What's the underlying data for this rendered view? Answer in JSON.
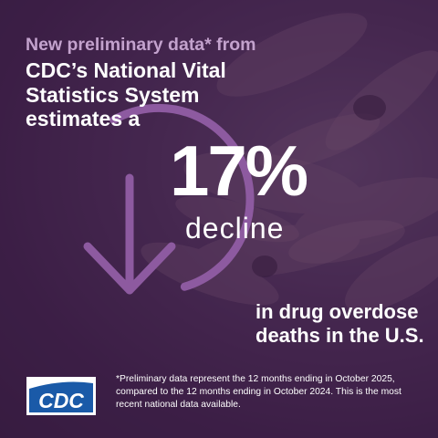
{
  "intro": "New preliminary data* from",
  "headline": {
    "line1": "CDC’s National Vital",
    "line2": "Statistics System",
    "line3": "estimates a"
  },
  "stat": {
    "value": "17%",
    "label": "decline"
  },
  "tail": {
    "line1": "in drug overdose",
    "line2": "deaths in the U.S."
  },
  "footnote": "*Preliminary data represent the 12 months ending in October 2025, compared to the 12 months ending in October 2024. This is the most recent national data available.",
  "logo": {
    "text": "CDC"
  },
  "colors": {
    "background": "#3a2143",
    "accent_purple": "#8d5aa0",
    "intro_text": "#c3a2cd",
    "logo_blue": "#1a5aa8"
  },
  "icons": [
    "down-arrow-icon",
    "cdc-logo"
  ]
}
